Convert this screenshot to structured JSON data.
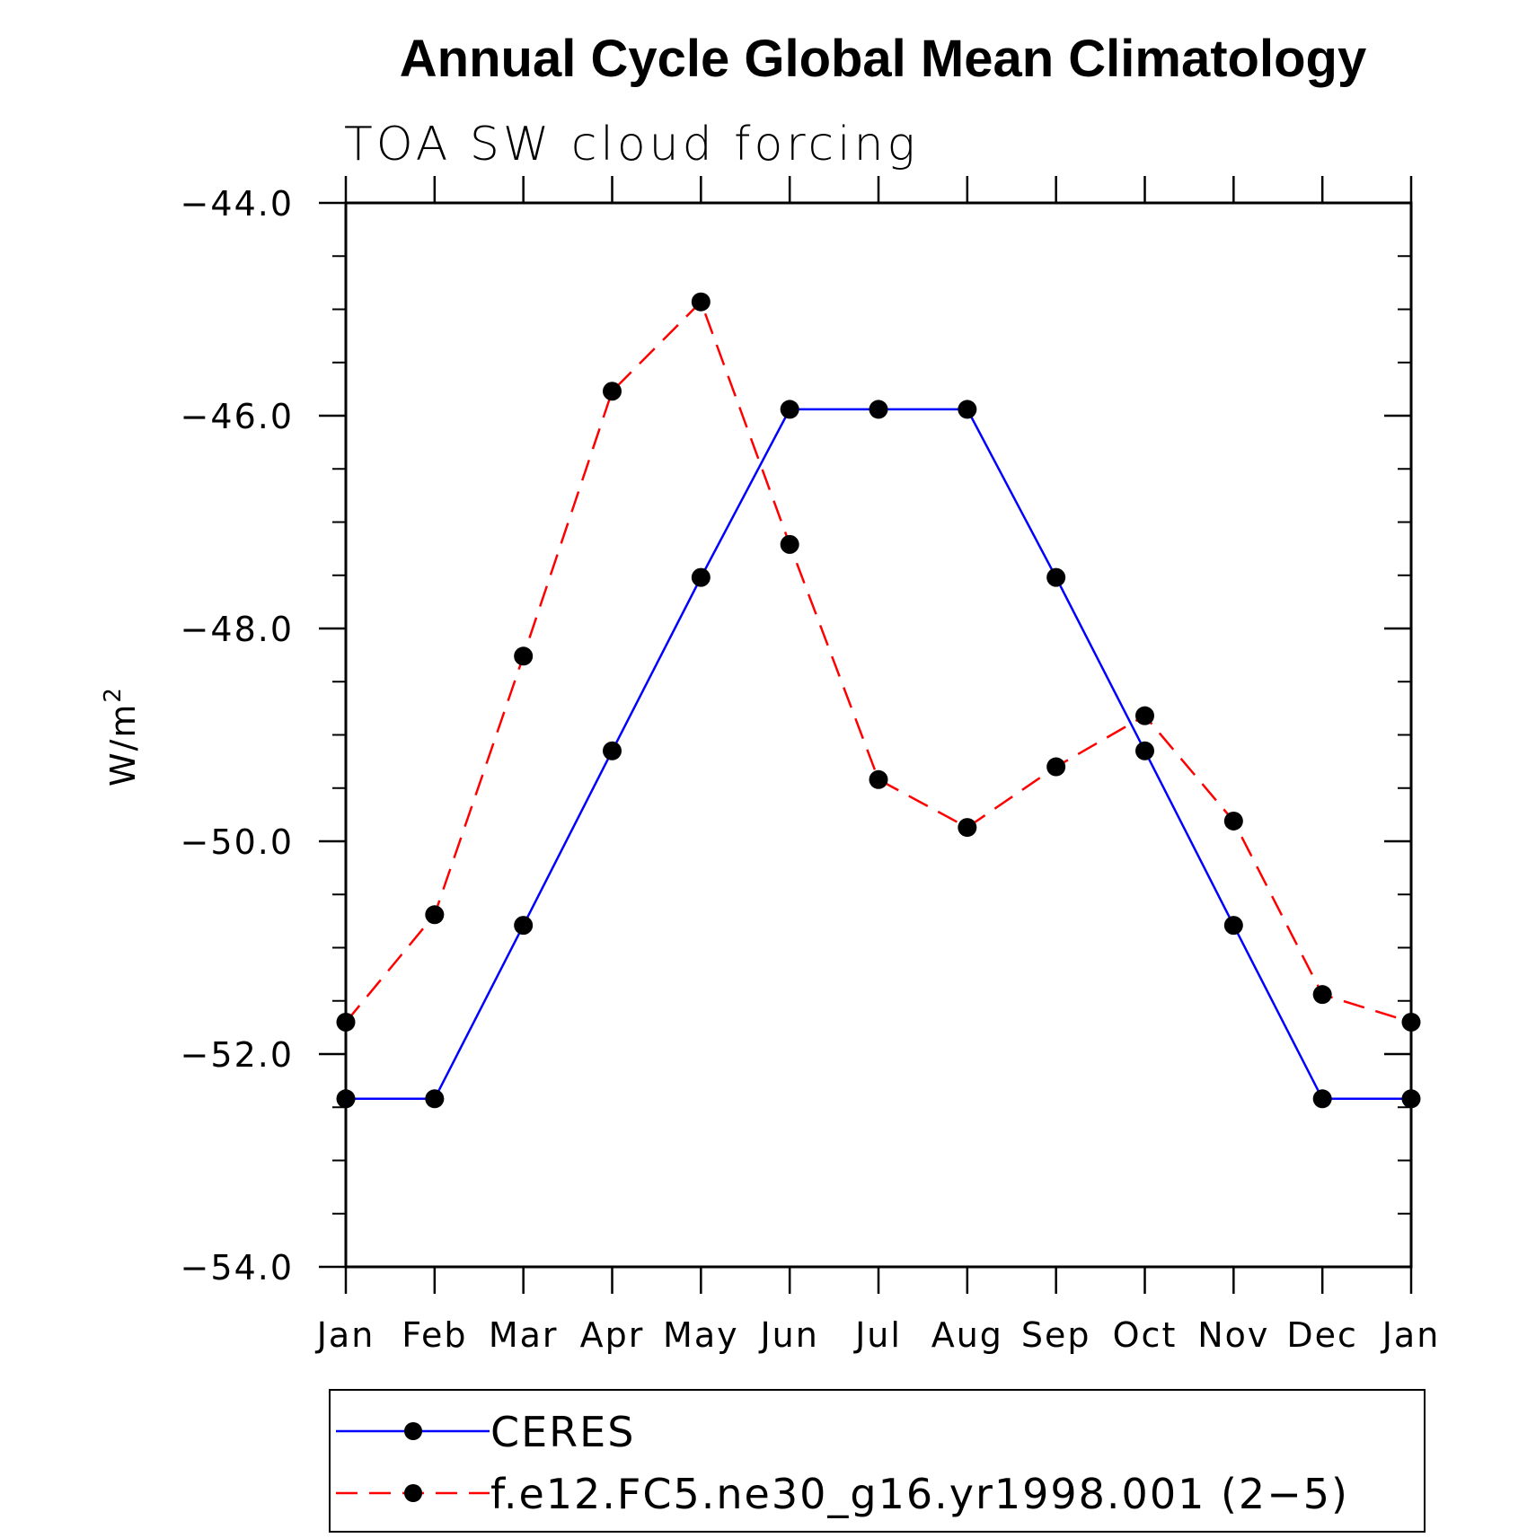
{
  "chart_data": {
    "type": "line",
    "title": "Annual Cycle Global Mean Climatology",
    "subtitle": "TOA SW cloud forcing",
    "ylabel": "W/m",
    "ylabel_superscript": "2",
    "xlabel": "",
    "categories": [
      "Jan",
      "Feb",
      "Mar",
      "Apr",
      "May",
      "Jun",
      "Jul",
      "Aug",
      "Sep",
      "Oct",
      "Nov",
      "Dec",
      "Jan"
    ],
    "ylim": [
      -54.0,
      -44.0
    ],
    "yticks": [
      -54.0,
      -52.0,
      -50.0,
      -48.0,
      -46.0,
      -44.0
    ],
    "ytick_labels": [
      "−54.0",
      "−52.0",
      "−50.0",
      "−48.0",
      "−46.0",
      "−44.0"
    ],
    "y_minor_step": 0.5,
    "grid": false,
    "legend_position": "bottom",
    "series": [
      {
        "name": "CERES",
        "color": "#0000ff",
        "dashed": false,
        "values": [
          -52.42,
          -52.42,
          -50.79,
          -49.15,
          -47.52,
          -45.94,
          -45.94,
          -45.94,
          -47.52,
          -49.15,
          -50.79,
          -52.42,
          -52.42
        ]
      },
      {
        "name": "f.e12.FC5.ne30_g16.yr1998.001 (2−5)",
        "color": "#ff0000",
        "dashed": true,
        "values": [
          -51.7,
          -50.69,
          -48.26,
          -45.77,
          -44.93,
          -47.21,
          -49.42,
          -49.87,
          -49.3,
          -48.82,
          -49.81,
          -51.44,
          -51.7
        ]
      }
    ]
  }
}
